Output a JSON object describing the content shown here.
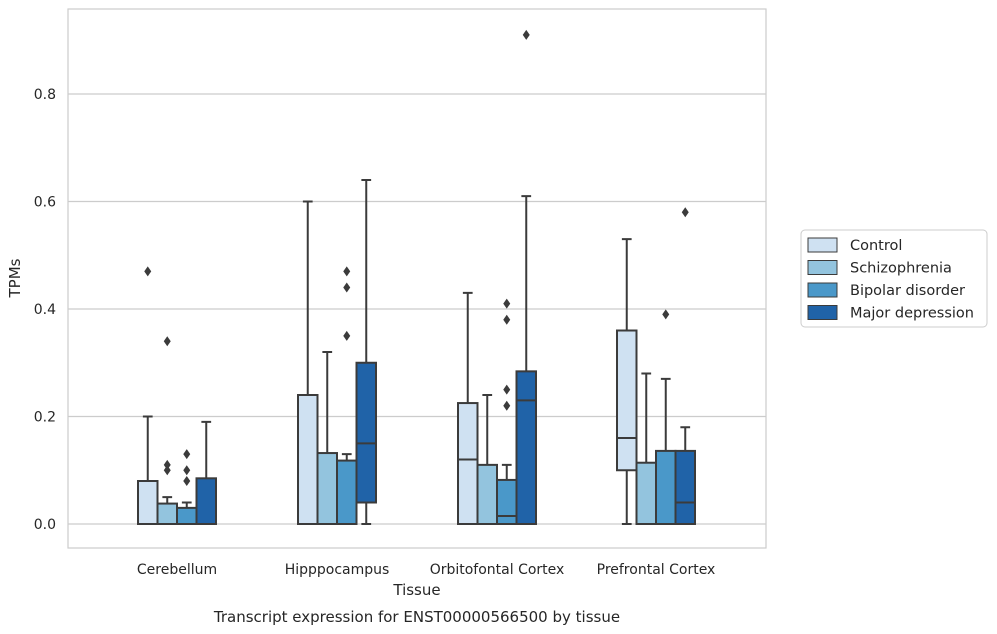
{
  "caption": "Transcript expression for ENST00000566500 by tissue",
  "chart_data": {
    "type": "box",
    "xlabel": "Tissue",
    "ylabel": "TPMs",
    "ylim": [
      -0.045,
      0.955
    ],
    "yticks": [
      "0.0",
      "0.2",
      "0.4",
      "0.6",
      "0.8"
    ],
    "grid": "horizontal",
    "legend_position": "right",
    "categories": [
      "Cerebellum",
      "Hipppocampus",
      "Orbitofontal Cortex",
      "Prefrontal Cortex"
    ],
    "series": [
      {
        "name": "Control",
        "color": "#cfe1f2",
        "boxes": [
          {
            "q1": 0.0,
            "median": 0.0,
            "q3": 0.08,
            "whislo": 0.0,
            "whishi": 0.2,
            "fliers": [
              0.47
            ]
          },
          {
            "q1": 0.0,
            "median": 0.0,
            "q3": 0.24,
            "whislo": 0.0,
            "whishi": 0.6,
            "fliers": []
          },
          {
            "q1": 0.0,
            "median": 0.12,
            "q3": 0.225,
            "whislo": 0.0,
            "whishi": 0.43,
            "fliers": []
          },
          {
            "q1": 0.1,
            "median": 0.16,
            "q3": 0.36,
            "whislo": 0.0,
            "whishi": 0.53,
            "fliers": []
          }
        ]
      },
      {
        "name": "Schizophrenia",
        "color": "#93c4de",
        "boxes": [
          {
            "q1": 0.0,
            "median": 0.0,
            "q3": 0.038,
            "whislo": 0.0,
            "whishi": 0.05,
            "fliers": [
              0.34,
              0.11,
              0.1
            ]
          },
          {
            "q1": 0.0,
            "median": 0.0,
            "q3": 0.132,
            "whislo": 0.0,
            "whishi": 0.32,
            "fliers": []
          },
          {
            "q1": 0.0,
            "median": 0.0,
            "q3": 0.11,
            "whislo": 0.0,
            "whishi": 0.24,
            "fliers": []
          },
          {
            "q1": 0.0,
            "median": 0.0,
            "q3": 0.114,
            "whislo": 0.0,
            "whishi": 0.28,
            "fliers": []
          }
        ]
      },
      {
        "name": "Bipolar disorder",
        "color": "#4a98c9",
        "boxes": [
          {
            "q1": 0.0,
            "median": 0.0,
            "q3": 0.03,
            "whislo": 0.0,
            "whishi": 0.04,
            "fliers": [
              0.13,
              0.1,
              0.08
            ]
          },
          {
            "q1": 0.0,
            "median": 0.0,
            "q3": 0.118,
            "whislo": 0.0,
            "whishi": 0.13,
            "fliers": [
              0.47,
              0.44,
              0.35
            ]
          },
          {
            "q1": 0.0,
            "median": 0.015,
            "q3": 0.082,
            "whislo": 0.0,
            "whishi": 0.11,
            "fliers": [
              0.41,
              0.38,
              0.25,
              0.22
            ]
          },
          {
            "q1": 0.0,
            "median": 0.0,
            "q3": 0.136,
            "whislo": 0.0,
            "whishi": 0.27,
            "fliers": [
              0.39
            ]
          }
        ]
      },
      {
        "name": "Major depression",
        "color": "#2063a8",
        "boxes": [
          {
            "q1": 0.0,
            "median": 0.0,
            "q3": 0.085,
            "whislo": 0.0,
            "whishi": 0.19,
            "fliers": []
          },
          {
            "q1": 0.04,
            "median": 0.15,
            "q3": 0.3,
            "whislo": 0.0,
            "whishi": 0.64,
            "fliers": []
          },
          {
            "q1": 0.0,
            "median": 0.23,
            "q3": 0.284,
            "whislo": 0.0,
            "whishi": 0.61,
            "fliers": [
              0.91
            ]
          },
          {
            "q1": 0.0,
            "median": 0.04,
            "q3": 0.136,
            "whislo": 0.0,
            "whishi": 0.18,
            "fliers": [
              0.58
            ]
          }
        ]
      }
    ]
  }
}
